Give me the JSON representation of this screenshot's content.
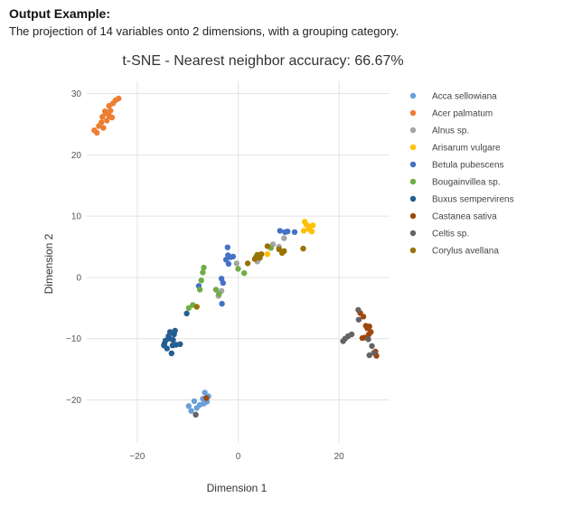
{
  "page": {
    "heading": "Output Example:",
    "caption": "The projection of 14 variables onto 2 dimensions, with a grouping category."
  },
  "chart_data": {
    "type": "scatter",
    "title": "t-SNE - Nearest neighbor accuracy: 66.67%",
    "xlabel": "Dimension 1",
    "ylabel": "Dimension 2",
    "xlim": [
      -30,
      30
    ],
    "ylim": [
      -27,
      32
    ],
    "xticks": [
      -20,
      0,
      20
    ],
    "yticks": [
      -20,
      -10,
      0,
      10,
      20,
      30
    ],
    "grid": true,
    "legend_position": "right",
    "series": [
      {
        "name": "Acca sellowiana",
        "color": "#6a9fd8",
        "points": [
          [
            -9.8,
            -21.0
          ],
          [
            -9.3,
            -21.8
          ],
          [
            -8.7,
            -20.2
          ],
          [
            -8.2,
            -21.3
          ],
          [
            -7.6,
            -20.8
          ],
          [
            -7.0,
            -19.8
          ],
          [
            -6.6,
            -18.8
          ],
          [
            -6.2,
            -20.3
          ],
          [
            -5.9,
            -19.4
          ],
          [
            -6.8,
            -20.6
          ]
        ]
      },
      {
        "name": "Acer palmatum",
        "color": "#ed7d31",
        "points": [
          [
            -28.5,
            24.0
          ],
          [
            -28.0,
            23.6
          ],
          [
            -27.6,
            24.7
          ],
          [
            -27.1,
            25.3
          ],
          [
            -26.7,
            24.4
          ],
          [
            -26.9,
            26.2
          ],
          [
            -26.3,
            26.8
          ],
          [
            -26.0,
            25.6
          ],
          [
            -25.6,
            26.4
          ],
          [
            -25.3,
            27.2
          ],
          [
            -25.0,
            26.1
          ],
          [
            -25.6,
            28.0
          ],
          [
            -24.8,
            28.4
          ],
          [
            -24.3,
            28.9
          ],
          [
            -23.7,
            29.2
          ],
          [
            -26.4,
            27.1
          ]
        ]
      },
      {
        "name": "Alnus sp.",
        "color": "#a5a5a5",
        "points": [
          [
            -3.9,
            -3.0
          ],
          [
            -3.3,
            -2.2
          ],
          [
            -0.3,
            2.3
          ],
          [
            3.8,
            2.6
          ],
          [
            6.9,
            5.4
          ],
          [
            9.1,
            6.4
          ],
          [
            8.1,
            5.0
          ]
        ]
      },
      {
        "name": "Arisarum vulgare",
        "color": "#ffc000",
        "points": [
          [
            5.8,
            3.8
          ],
          [
            13.0,
            7.6
          ],
          [
            13.5,
            8.6
          ],
          [
            14.1,
            8.3
          ],
          [
            14.6,
            7.5
          ],
          [
            14.8,
            8.5
          ],
          [
            14.0,
            7.9
          ],
          [
            13.2,
            9.1
          ]
        ]
      },
      {
        "name": "Betula pubescens",
        "color": "#4472c4",
        "points": [
          [
            -7.8,
            -1.4
          ],
          [
            -3.3,
            -0.2
          ],
          [
            -3.0,
            -0.9
          ],
          [
            -3.2,
            -4.3
          ],
          [
            -2.4,
            2.9
          ],
          [
            -2.1,
            4.9
          ],
          [
            -1.9,
            2.2
          ],
          [
            -1.5,
            3.3
          ],
          [
            -1.0,
            3.4
          ],
          [
            -2.0,
            3.6
          ],
          [
            8.3,
            7.6
          ],
          [
            9.3,
            7.4
          ],
          [
            11.2,
            7.4
          ],
          [
            9.8,
            7.5
          ]
        ]
      },
      {
        "name": "Bougainvillea sp.",
        "color": "#70ad47",
        "points": [
          [
            -9.8,
            -5.0
          ],
          [
            -9.0,
            -4.5
          ],
          [
            -7.6,
            -2.0
          ],
          [
            -7.3,
            -0.5
          ],
          [
            -7.0,
            0.8
          ],
          [
            -6.8,
            1.6
          ],
          [
            -4.4,
            -2.0
          ],
          [
            -3.8,
            -2.7
          ],
          [
            0.0,
            1.4
          ],
          [
            1.2,
            0.7
          ],
          [
            3.5,
            3.3
          ],
          [
            6.5,
            4.8
          ]
        ]
      },
      {
        "name": "Buxus sempervirens",
        "color": "#255e91",
        "points": [
          [
            -14.7,
            -11.1
          ],
          [
            -14.4,
            -10.3
          ],
          [
            -14.1,
            -11.6
          ],
          [
            -13.8,
            -9.6
          ],
          [
            -13.5,
            -8.9
          ],
          [
            -13.2,
            -12.4
          ],
          [
            -13.0,
            -11.1
          ],
          [
            -12.9,
            -10.2
          ],
          [
            -12.7,
            -9.3
          ],
          [
            -12.5,
            -8.7
          ],
          [
            -12.3,
            -11.0
          ],
          [
            -11.5,
            -10.9
          ],
          [
            -10.2,
            -5.9
          ],
          [
            -14.6,
            -10.8
          ],
          [
            -13.6,
            -10.0
          ]
        ]
      },
      {
        "name": "Castanea sativa",
        "color": "#9e480e",
        "points": [
          [
            -6.3,
            -19.7
          ],
          [
            24.2,
            -5.8
          ],
          [
            24.8,
            -6.4
          ],
          [
            25.3,
            -7.9
          ],
          [
            25.6,
            -8.3
          ],
          [
            25.9,
            -9.3
          ],
          [
            24.6,
            -9.9
          ],
          [
            25.1,
            -9.8
          ],
          [
            26.3,
            -8.9
          ],
          [
            27.2,
            -12.1
          ],
          [
            27.4,
            -12.8
          ],
          [
            26.0,
            -8.0
          ]
        ]
      },
      {
        "name": "Celtis sp.",
        "color": "#636363",
        "points": [
          [
            -8.4,
            -22.4
          ],
          [
            20.8,
            -10.4
          ],
          [
            21.2,
            -10.0
          ],
          [
            21.8,
            -9.6
          ],
          [
            22.5,
            -9.3
          ],
          [
            23.8,
            -5.3
          ],
          [
            23.9,
            -6.9
          ],
          [
            25.8,
            -10.1
          ],
          [
            26.0,
            -12.7
          ],
          [
            26.5,
            -11.2
          ],
          [
            26.9,
            -12.3
          ]
        ]
      },
      {
        "name": "Corylus avellana",
        "color": "#997300",
        "points": [
          [
            -8.2,
            -4.8
          ],
          [
            1.9,
            2.3
          ],
          [
            3.3,
            3.0
          ],
          [
            3.8,
            3.7
          ],
          [
            4.3,
            3.2
          ],
          [
            4.6,
            3.8
          ],
          [
            5.8,
            5.1
          ],
          [
            8.1,
            4.6
          ],
          [
            8.7,
            4.0
          ],
          [
            9.1,
            4.3
          ],
          [
            12.9,
            4.7
          ],
          [
            4.0,
            3.5
          ]
        ]
      }
    ]
  }
}
